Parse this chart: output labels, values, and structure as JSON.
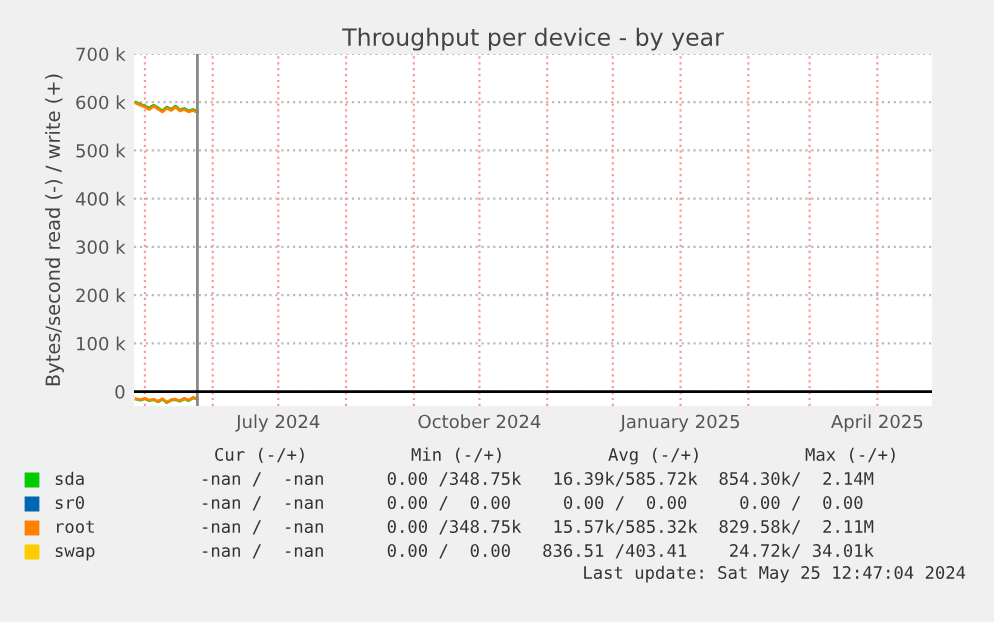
{
  "chart_data": {
    "type": "line",
    "title": "Throughput per device - by year",
    "ylabel": "Bytes/second read (-) / write (+)",
    "xlim": [
      "2024-04-26",
      "2025-04-26"
    ],
    "xticks": [
      {
        "value": "2024-05-01",
        "label": null
      },
      {
        "value": "2024-06-01",
        "label": null
      },
      {
        "value": "2024-07-01",
        "label": "July 2024"
      },
      {
        "value": "2024-08-01",
        "label": null
      },
      {
        "value": "2024-09-01",
        "label": null
      },
      {
        "value": "2024-10-01",
        "label": "October 2024"
      },
      {
        "value": "2024-11-01",
        "label": null
      },
      {
        "value": "2024-12-01",
        "label": null
      },
      {
        "value": "2025-01-01",
        "label": "January 2025"
      },
      {
        "value": "2025-02-01",
        "label": null
      },
      {
        "value": "2025-03-01",
        "label": null
      },
      {
        "value": "2025-04-01",
        "label": "April 2025"
      }
    ],
    "ylim": [
      -30000,
      700000
    ],
    "yticks": [
      {
        "value": 0,
        "label": "0"
      },
      {
        "value": 100000,
        "label": "100 k"
      },
      {
        "value": 200000,
        "label": "200 k"
      },
      {
        "value": 300000,
        "label": "300 k"
      },
      {
        "value": 400000,
        "label": "400 k"
      },
      {
        "value": 500000,
        "label": "500 k"
      },
      {
        "value": 600000,
        "label": "600 k"
      },
      {
        "value": 700000,
        "label": "700 k"
      }
    ],
    "grid": true,
    "legend": "bottom",
    "x": [
      "2024-04-27",
      "2024-04-29",
      "2024-05-01",
      "2024-05-03",
      "2024-05-05",
      "2024-05-07",
      "2024-05-09",
      "2024-05-11",
      "2024-05-13",
      "2024-05-15",
      "2024-05-17",
      "2024-05-19",
      "2024-05-21",
      "2024-05-23",
      "2024-05-25"
    ],
    "series": [
      {
        "name": "sda",
        "color": "#00cc00",
        "values": [
          600000,
          596000,
          592000,
          588000,
          594000,
          588000,
          582000,
          590000,
          585000,
          592000,
          584000,
          587000,
          582000,
          585000,
          581000
        ]
      },
      {
        "color": "#00cc00",
        "values": [
          -16000,
          -18000,
          -15000,
          -19000,
          -17000,
          -21000,
          -16000,
          -23000,
          -18000,
          -17000,
          -20000,
          -15000,
          -19000,
          -13000,
          -16000
        ]
      },
      {
        "name": "sr0",
        "color": "#0066b3",
        "values": [
          null,
          null,
          null,
          null,
          null,
          null,
          null,
          null,
          null,
          null,
          null,
          null,
          null,
          null,
          null
        ]
      },
      {
        "name": "root",
        "color": "#ff8000",
        "values": [
          598000,
          594000,
          590000,
          585000,
          592000,
          586000,
          580000,
          588000,
          583000,
          590000,
          582000,
          585000,
          580000,
          583000,
          579000
        ]
      },
      {
        "color": "#ff8000",
        "values": [
          -15000,
          -17000,
          -14000,
          -18000,
          -16000,
          -20000,
          -15000,
          -22000,
          -17000,
          -16000,
          -19000,
          -14000,
          -18000,
          -12000,
          -15000
        ]
      },
      {
        "name": "swap",
        "color": "#ffcc00",
        "values": [
          null,
          null,
          null,
          null,
          null,
          null,
          null,
          null,
          null,
          null,
          null,
          null,
          null,
          null,
          null
        ]
      }
    ],
    "ref_lines": [
      {
        "axis": "x",
        "value": "2024-05-25",
        "color": "#888888"
      },
      {
        "axis": "y",
        "value": 0,
        "color": "#000000"
      }
    ],
    "annotations": [
      "Cur (-/+)          Min (-/+)          Avg (-/+)          Max (-/+)",
      "-nan /  -nan      0.00 /348.75k   16.39k/585.72k  854.30k/  2.14M",
      "-nan /  -nan      0.00 /  0.00     0.00 /  0.00     0.00 /  0.00",
      "-nan /  -nan      0.00 /348.75k   15.57k/585.32k  829.58k/  2.11M",
      "-nan /  -nan      0.00 /  0.00   836.51 /403.41    24.72k/ 34.01k",
      "Last update: Sat May 25 12:47:04 2024"
    ]
  }
}
